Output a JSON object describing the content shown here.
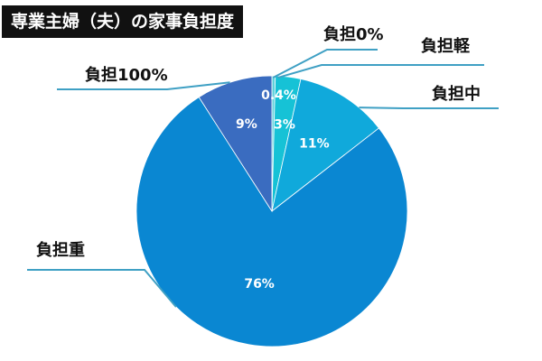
{
  "chart_data": {
    "type": "pie",
    "title": "専業主婦（夫）の家事負担度",
    "slices": [
      {
        "label": "負担0%",
        "value": 0.4,
        "value_label": "0.4%",
        "color": "#5fd0dc"
      },
      {
        "label": "負担軽",
        "value": 3,
        "value_label": "3%",
        "color": "#16c2d6"
      },
      {
        "label": "負担中",
        "value": 11,
        "value_label": "11%",
        "color": "#10a9db"
      },
      {
        "label": "負担重",
        "value": 76,
        "value_label": "76%",
        "color": "#0a87d2"
      },
      {
        "label": "負担100%",
        "value": 9,
        "value_label": "9%",
        "color": "#3a6cc0"
      }
    ],
    "leader_color": "#3fa0c4"
  }
}
